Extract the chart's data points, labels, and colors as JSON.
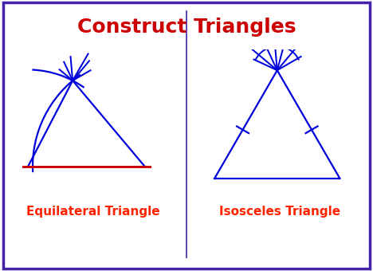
{
  "title": "Construct Triangles",
  "title_color": "#cc0000",
  "title_fontsize": 18,
  "title_fontweight": "bold",
  "label_left": "Equilateral Triangle",
  "label_right": "Isosceles Triangle",
  "label_color": "#ff2200",
  "label_fontsize": 11,
  "border_color": "#4422aa",
  "divider_color": "#4422aa",
  "blue": "#0000dd",
  "red": "#cc0000",
  "bg": "#ffffff"
}
